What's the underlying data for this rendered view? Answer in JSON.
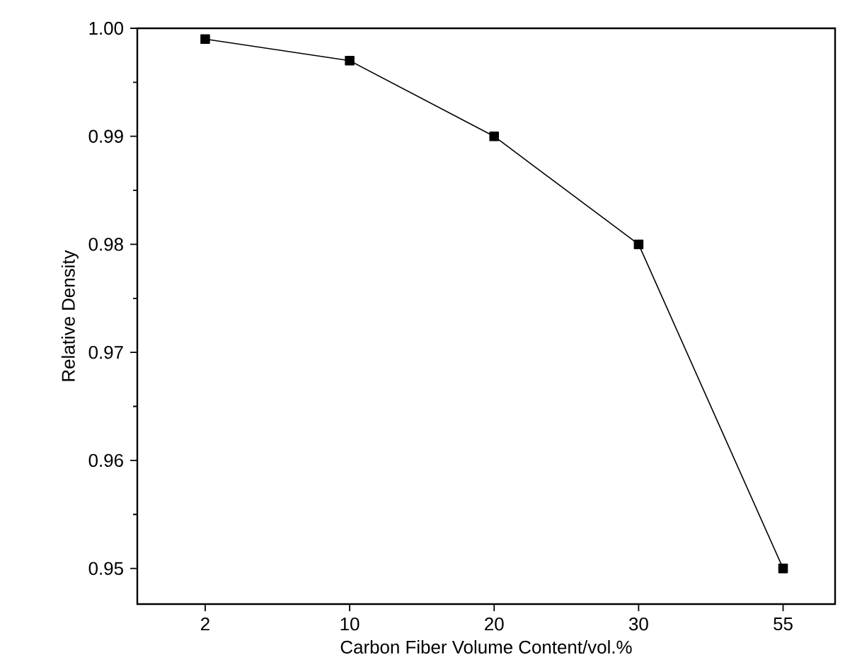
{
  "chart_data": {
    "type": "line",
    "xlabel": "Carbon Fiber Volume Content/vol.%",
    "ylabel": "Relative Density",
    "categories": [
      "2",
      "10",
      "20",
      "30",
      "55"
    ],
    "series": [
      {
        "color": "#000000",
        "values": [
          0.999,
          0.997,
          0.99,
          0.98,
          0.95
        ]
      }
    ],
    "ylim": [
      0.9467,
      1.0
    ],
    "yticks": [
      0.95,
      0.96,
      0.97,
      0.98,
      0.99,
      {
        "value": 1.0,
        "label": "1.00"
      }
    ],
    "marker": "square",
    "line_style": "solid",
    "grid": false,
    "legend": false
  }
}
